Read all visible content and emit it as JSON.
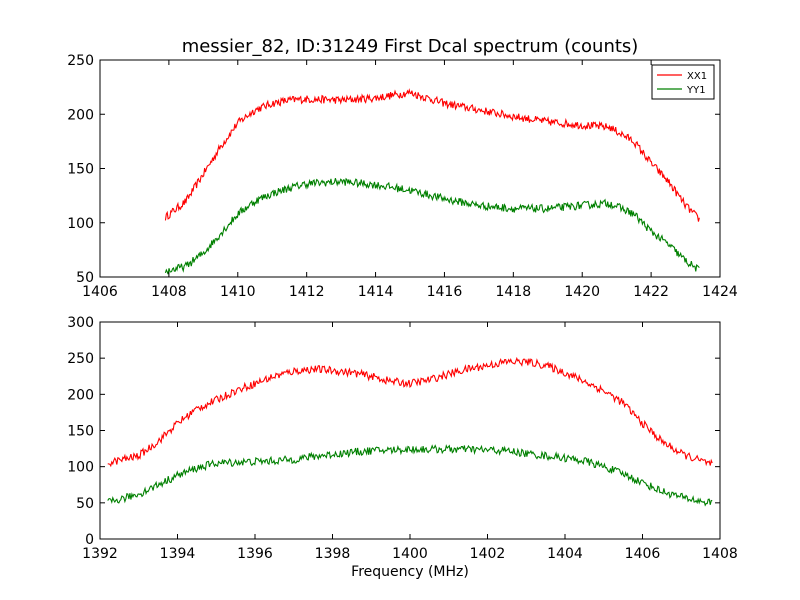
{
  "chart_data": [
    {
      "type": "line",
      "title": "messier_82, ID:31249 First Dcal spectrum (counts)",
      "xlabel": "",
      "ylabel": "",
      "xlim": [
        1406,
        1424
      ],
      "ylim": [
        50,
        250
      ],
      "x_ticks": [
        1406,
        1408,
        1410,
        1412,
        1414,
        1416,
        1418,
        1420,
        1422,
        1424
      ],
      "y_ticks": [
        50,
        100,
        150,
        200,
        250
      ],
      "legend_position": "top-right",
      "grid": false,
      "series": [
        {
          "name": "XX1",
          "color": "#ff0000",
          "x": [
            1407.9,
            1408.5,
            1409.0,
            1409.5,
            1410.0,
            1410.5,
            1411.0,
            1411.5,
            1412.0,
            1413.0,
            1414.0,
            1415.0,
            1416.0,
            1417.0,
            1418.0,
            1419.0,
            1420.0,
            1420.8,
            1421.5,
            1422.0,
            1422.5,
            1423.0,
            1423.4
          ],
          "y": [
            105,
            120,
            145,
            170,
            192,
            204,
            210,
            213,
            214,
            213,
            215,
            220,
            210,
            204,
            198,
            193,
            190,
            188,
            175,
            155,
            138,
            116,
            103
          ]
        },
        {
          "name": "YY1",
          "color": "#008000",
          "x": [
            1407.9,
            1408.5,
            1409.0,
            1409.5,
            1410.0,
            1410.5,
            1411.0,
            1411.5,
            1412.0,
            1413.0,
            1414.0,
            1415.0,
            1416.0,
            1417.0,
            1418.0,
            1419.0,
            1420.0,
            1420.8,
            1421.5,
            1422.0,
            1422.5,
            1423.0,
            1423.4
          ],
          "y": [
            55,
            60,
            72,
            90,
            108,
            120,
            127,
            132,
            136,
            138,
            135,
            130,
            122,
            116,
            113,
            113,
            116,
            118,
            108,
            92,
            80,
            65,
            56
          ]
        }
      ]
    },
    {
      "type": "line",
      "title": "",
      "xlabel": "Frequency (MHz)",
      "ylabel": "",
      "xlim": [
        1392,
        1408
      ],
      "ylim": [
        0,
        300
      ],
      "x_ticks": [
        1392,
        1394,
        1396,
        1398,
        1400,
        1402,
        1404,
        1406,
        1408
      ],
      "y_ticks": [
        0,
        50,
        100,
        150,
        200,
        250,
        300
      ],
      "grid": false,
      "series": [
        {
          "name": "XX1",
          "color": "#ff0000",
          "x": [
            1392.2,
            1393.0,
            1393.5,
            1394.0,
            1394.5,
            1395.0,
            1395.5,
            1396.0,
            1396.5,
            1397.0,
            1397.5,
            1398.0,
            1398.5,
            1399.0,
            1399.5,
            1400.0,
            1400.5,
            1401.0,
            1401.5,
            1402.0,
            1402.5,
            1403.0,
            1403.5,
            1404.0,
            1404.5,
            1405.0,
            1405.5,
            1406.0,
            1406.5,
            1407.0,
            1407.5,
            1407.8
          ],
          "y": [
            105,
            115,
            135,
            160,
            180,
            192,
            205,
            215,
            225,
            232,
            235,
            233,
            230,
            225,
            218,
            215,
            220,
            228,
            235,
            240,
            245,
            245,
            240,
            230,
            218,
            205,
            188,
            160,
            135,
            118,
            108,
            103
          ]
        },
        {
          "name": "YY1",
          "color": "#008000",
          "x": [
            1392.2,
            1393.0,
            1393.5,
            1394.0,
            1394.5,
            1395.0,
            1395.5,
            1396.0,
            1396.5,
            1397.0,
            1397.5,
            1398.0,
            1398.5,
            1399.0,
            1399.5,
            1400.0,
            1400.5,
            1401.0,
            1401.5,
            1402.0,
            1402.5,
            1403.0,
            1403.5,
            1404.0,
            1404.5,
            1405.0,
            1405.5,
            1406.0,
            1406.5,
            1407.0,
            1407.5,
            1407.8
          ],
          "y": [
            50,
            62,
            75,
            88,
            98,
            105,
            106,
            107,
            108,
            110,
            114,
            117,
            120,
            122,
            123,
            124,
            124,
            124,
            124,
            123,
            122,
            118,
            115,
            112,
            108,
            100,
            90,
            78,
            66,
            58,
            52,
            50
          ]
        }
      ]
    }
  ]
}
